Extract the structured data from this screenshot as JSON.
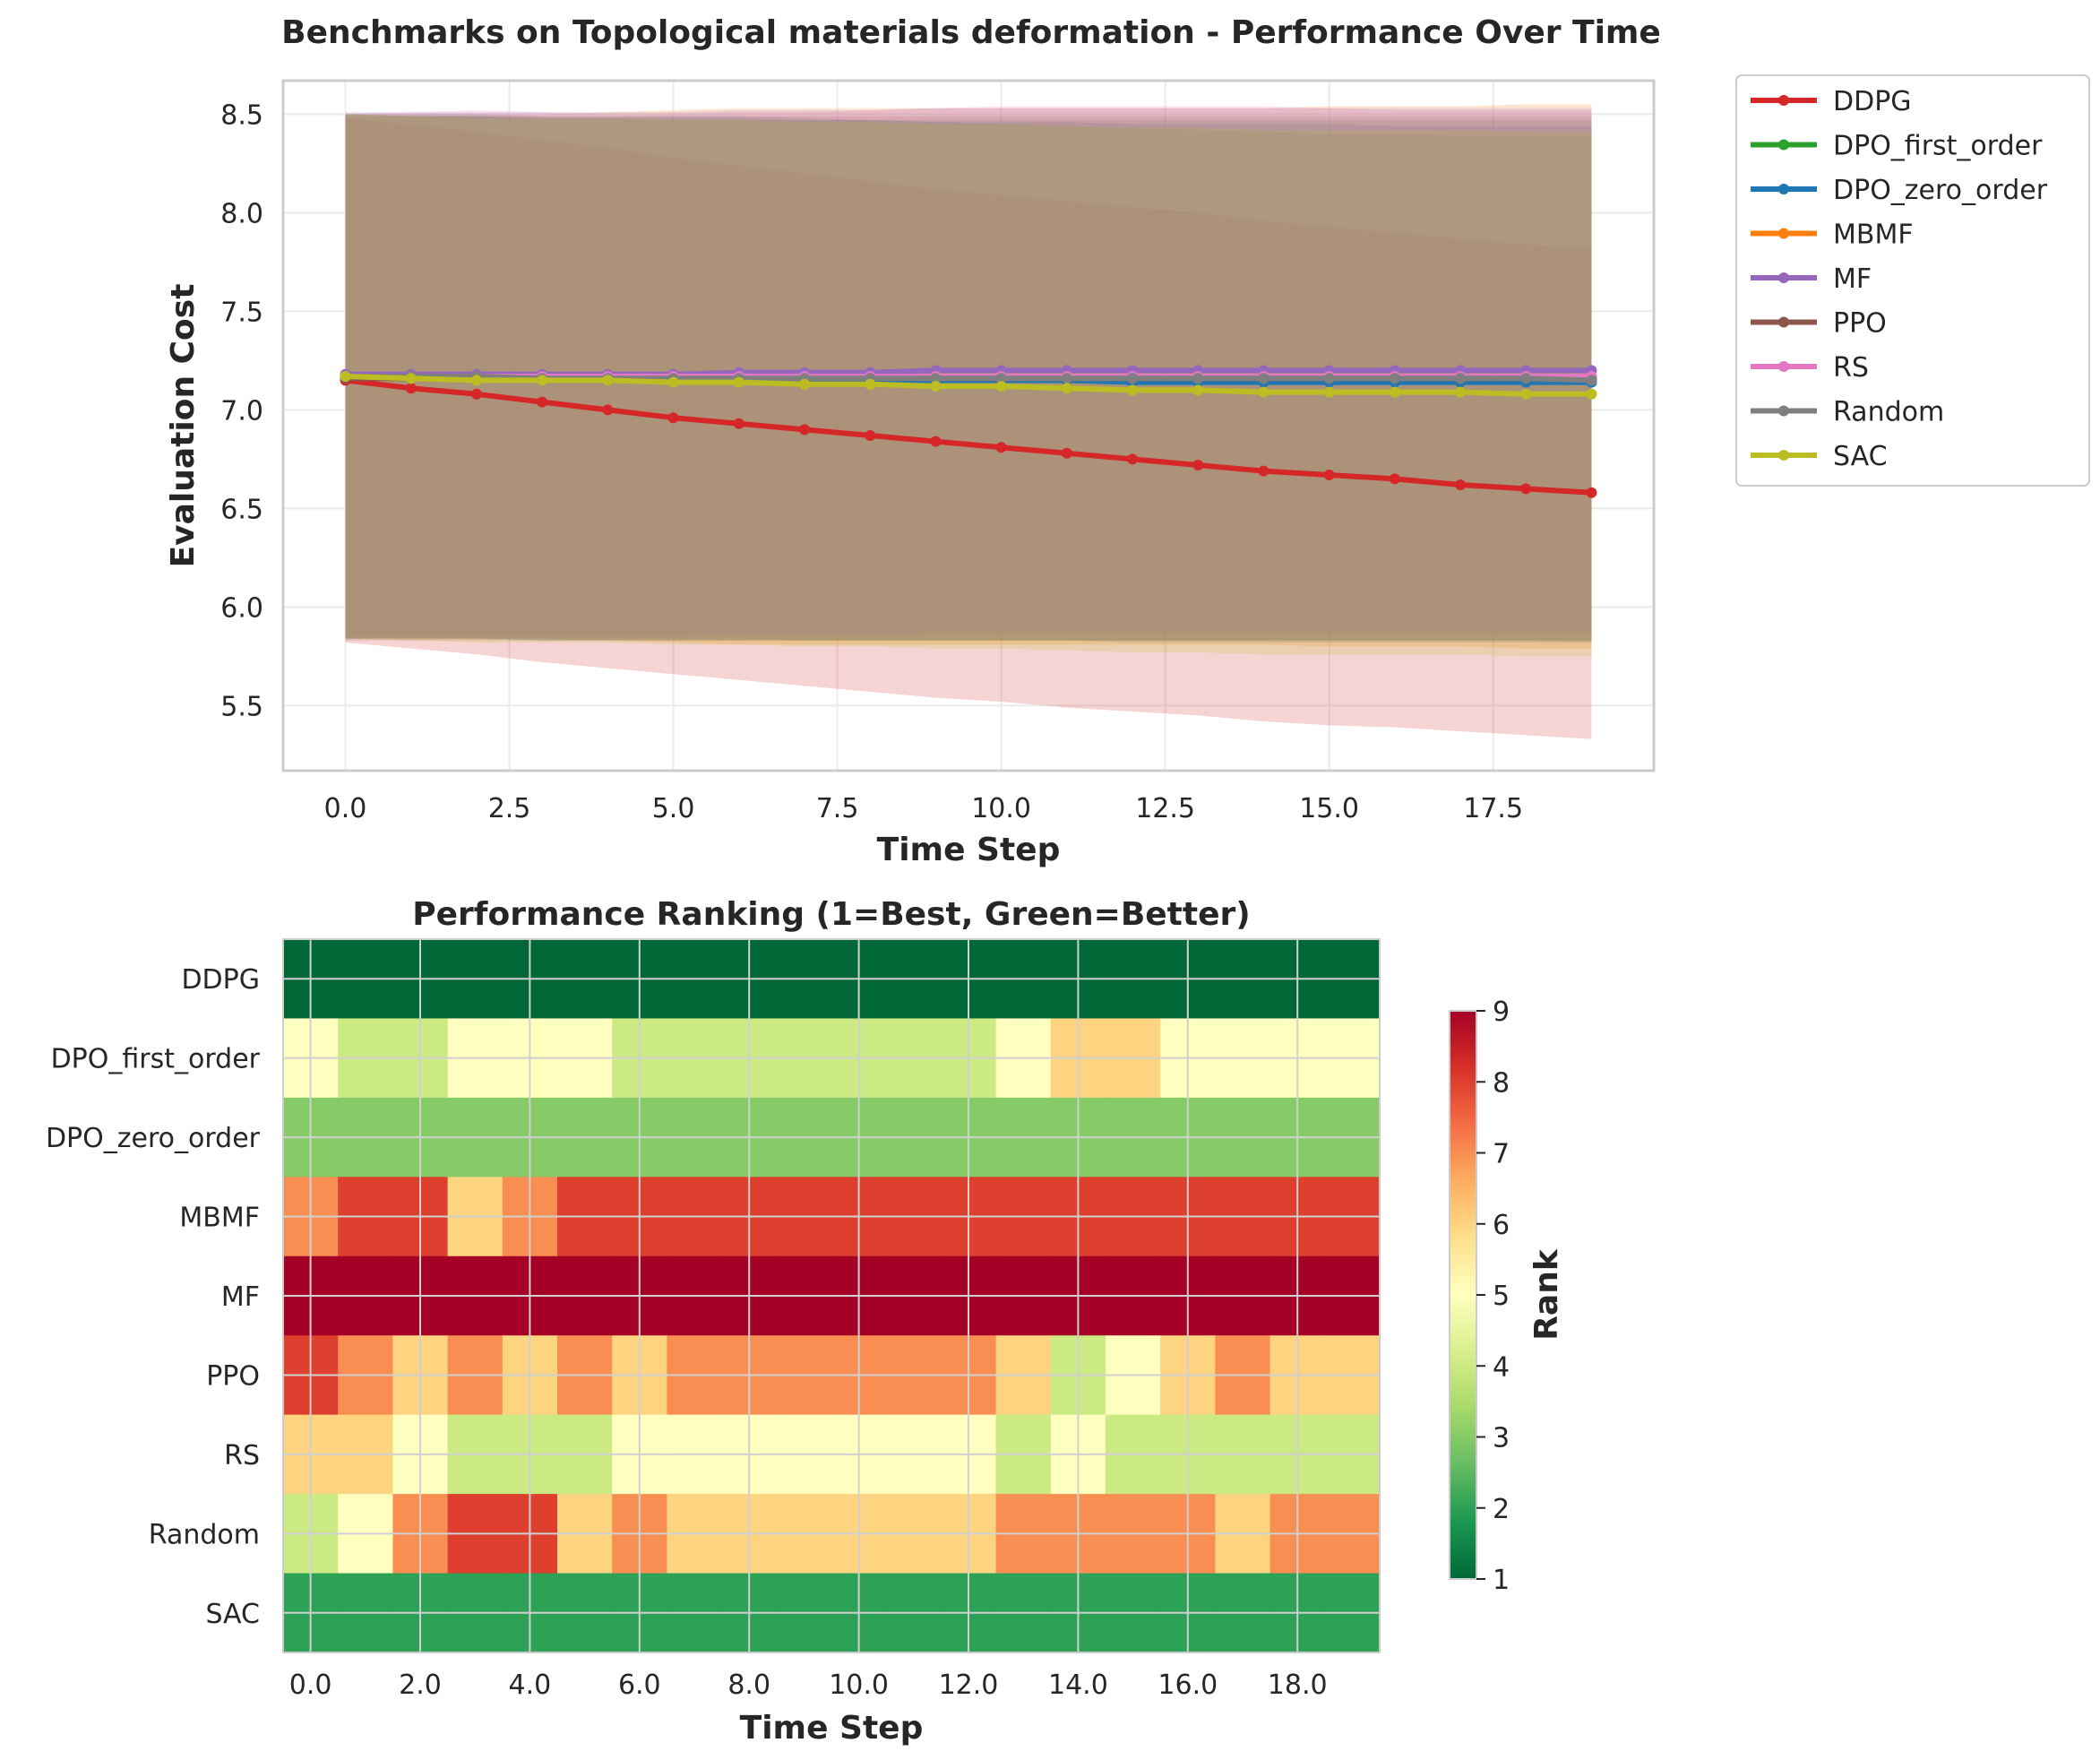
{
  "colors": {
    "DDPG": "#d62728",
    "DPO_first_order": "#2ca02c",
    "DPO_zero_order": "#1f77b4",
    "MBMF": "#ff7f0e",
    "MF": "#9467bd",
    "PPO": "#8c564b",
    "RS": "#e377c2",
    "Random": "#7f7f7f",
    "SAC": "#bcbd22"
  },
  "chart_data": [
    {
      "type": "line",
      "title": "Benchmarks on Topological materials deformation - Performance Over Time",
      "xlabel": "Time Step",
      "ylabel": "Evaluation Cost",
      "xlim": [
        -0.95,
        19.95
      ],
      "ylim": [
        5.17,
        8.67
      ],
      "xticks": [
        0.0,
        2.5,
        5.0,
        7.5,
        10.0,
        12.5,
        15.0,
        17.5
      ],
      "xtick_labels": [
        "0.0",
        "2.5",
        "5.0",
        "7.5",
        "10.0",
        "12.5",
        "15.0",
        "17.5"
      ],
      "yticks": [
        5.5,
        6.0,
        6.5,
        7.0,
        7.5,
        8.0,
        8.5
      ],
      "ytick_labels": [
        "5.5",
        "6.0",
        "6.5",
        "7.0",
        "7.5",
        "8.0",
        "8.5"
      ],
      "grid": true,
      "legend": "outside-right",
      "x": [
        0,
        1,
        2,
        3,
        4,
        5,
        6,
        7,
        8,
        9,
        10,
        11,
        12,
        13,
        14,
        15,
        16,
        17,
        18,
        19
      ],
      "series": [
        {
          "name": "DDPG",
          "values": [
            7.15,
            7.11,
            7.08,
            7.04,
            7.0,
            6.96,
            6.93,
            6.9,
            6.87,
            6.84,
            6.81,
            6.78,
            6.75,
            6.72,
            6.69,
            6.67,
            6.65,
            6.62,
            6.6,
            6.58
          ],
          "lower": [
            5.82,
            5.79,
            5.76,
            5.72,
            5.69,
            5.66,
            5.63,
            5.6,
            5.57,
            5.54,
            5.52,
            5.49,
            5.47,
            5.45,
            5.42,
            5.4,
            5.39,
            5.37,
            5.35,
            5.33
          ],
          "upper": [
            8.48,
            8.45,
            8.41,
            8.37,
            8.33,
            8.28,
            8.24,
            8.2,
            8.16,
            8.12,
            8.09,
            8.06,
            8.03,
            8.0,
            7.96,
            7.93,
            7.9,
            7.87,
            7.84,
            7.82
          ]
        },
        {
          "name": "DPO_first_order",
          "values": [
            7.17,
            7.16,
            7.16,
            7.16,
            7.16,
            7.16,
            7.16,
            7.15,
            7.15,
            7.15,
            7.15,
            7.15,
            7.15,
            7.15,
            7.15,
            7.15,
            7.15,
            7.15,
            7.15,
            7.15
          ],
          "lower": [
            5.84,
            5.84,
            5.84,
            5.84,
            5.84,
            5.84,
            5.84,
            5.83,
            5.83,
            5.83,
            5.83,
            5.83,
            5.83,
            5.83,
            5.83,
            5.83,
            5.83,
            5.83,
            5.83,
            5.83
          ],
          "upper": [
            8.5,
            8.49,
            8.49,
            8.48,
            8.48,
            8.48,
            8.48,
            8.47,
            8.47,
            8.47,
            8.47,
            8.47,
            8.47,
            8.47,
            8.47,
            8.47,
            8.47,
            8.47,
            8.47,
            8.47
          ]
        },
        {
          "name": "DPO_zero_order",
          "values": [
            7.17,
            7.16,
            7.16,
            7.15,
            7.15,
            7.15,
            7.15,
            7.15,
            7.15,
            7.15,
            7.15,
            7.15,
            7.14,
            7.14,
            7.14,
            7.14,
            7.14,
            7.14,
            7.14,
            7.14
          ],
          "lower": [
            5.84,
            5.84,
            5.84,
            5.83,
            5.83,
            5.83,
            5.83,
            5.83,
            5.83,
            5.83,
            5.83,
            5.83,
            5.82,
            5.82,
            5.82,
            5.82,
            5.82,
            5.82,
            5.82,
            5.82
          ],
          "upper": [
            8.5,
            8.49,
            8.49,
            8.48,
            8.48,
            8.47,
            8.47,
            8.47,
            8.47,
            8.46,
            8.46,
            8.46,
            8.45,
            8.45,
            8.45,
            8.45,
            8.44,
            8.44,
            8.44,
            8.44
          ]
        },
        {
          "name": "MBMF",
          "values": [
            7.17,
            7.17,
            7.17,
            7.17,
            7.17,
            7.17,
            7.17,
            7.17,
            7.17,
            7.17,
            7.17,
            7.17,
            7.17,
            7.17,
            7.17,
            7.17,
            7.17,
            7.17,
            7.17,
            7.17
          ],
          "lower": [
            5.84,
            5.84,
            5.84,
            5.84,
            5.83,
            5.82,
            5.81,
            5.81,
            5.81,
            5.81,
            5.81,
            5.81,
            5.81,
            5.81,
            5.81,
            5.8,
            5.8,
            5.8,
            5.79,
            5.79
          ],
          "upper": [
            8.5,
            8.5,
            8.5,
            8.5,
            8.51,
            8.52,
            8.53,
            8.53,
            8.53,
            8.53,
            8.53,
            8.53,
            8.53,
            8.53,
            8.53,
            8.54,
            8.54,
            8.54,
            8.55,
            8.55
          ]
        },
        {
          "name": "MF",
          "values": [
            7.18,
            7.18,
            7.18,
            7.18,
            7.18,
            7.18,
            7.19,
            7.19,
            7.19,
            7.2,
            7.2,
            7.2,
            7.2,
            7.2,
            7.2,
            7.2,
            7.2,
            7.2,
            7.2,
            7.2
          ],
          "lower": [
            5.85,
            5.85,
            5.85,
            5.85,
            5.85,
            5.85,
            5.86,
            5.86,
            5.86,
            5.87,
            5.87,
            5.87,
            5.87,
            5.87,
            5.87,
            5.87,
            5.87,
            5.87,
            5.87,
            5.87
          ],
          "upper": [
            8.51,
            8.51,
            8.51,
            8.51,
            8.51,
            8.51,
            8.52,
            8.52,
            8.52,
            8.53,
            8.53,
            8.53,
            8.53,
            8.53,
            8.53,
            8.53,
            8.53,
            8.53,
            8.53,
            8.53
          ]
        },
        {
          "name": "PPO",
          "values": [
            7.16,
            7.16,
            7.16,
            7.16,
            7.16,
            7.16,
            7.16,
            7.16,
            7.16,
            7.16,
            7.16,
            7.16,
            7.16,
            7.16,
            7.16,
            7.16,
            7.16,
            7.16,
            7.16,
            7.16
          ],
          "lower": [
            5.83,
            5.83,
            5.83,
            5.83,
            5.83,
            5.83,
            5.83,
            5.83,
            5.83,
            5.83,
            5.83,
            5.83,
            5.83,
            5.83,
            5.83,
            5.83,
            5.83,
            5.83,
            5.83,
            5.83
          ],
          "upper": [
            8.49,
            8.49,
            8.49,
            8.49,
            8.49,
            8.49,
            8.49,
            8.49,
            8.49,
            8.49,
            8.49,
            8.49,
            8.49,
            8.49,
            8.49,
            8.49,
            8.49,
            8.49,
            8.49,
            8.49
          ]
        },
        {
          "name": "RS",
          "values": [
            7.17,
            7.17,
            7.17,
            7.17,
            7.17,
            7.17,
            7.17,
            7.17,
            7.17,
            7.17,
            7.17,
            7.17,
            7.17,
            7.17,
            7.17,
            7.17,
            7.17,
            7.17,
            7.17,
            7.17
          ],
          "lower": [
            5.84,
            5.84,
            5.84,
            5.84,
            5.84,
            5.84,
            5.84,
            5.84,
            5.84,
            5.84,
            5.84,
            5.84,
            5.84,
            5.84,
            5.84,
            5.84,
            5.84,
            5.84,
            5.84,
            5.84
          ],
          "upper": [
            8.5,
            8.51,
            8.52,
            8.51,
            8.5,
            8.5,
            8.51,
            8.51,
            8.52,
            8.53,
            8.54,
            8.54,
            8.54,
            8.54,
            8.54,
            8.53,
            8.52,
            8.52,
            8.52,
            8.52
          ]
        },
        {
          "name": "Random",
          "values": [
            7.17,
            7.17,
            7.17,
            7.16,
            7.16,
            7.16,
            7.16,
            7.16,
            7.16,
            7.16,
            7.16,
            7.16,
            7.16,
            7.16,
            7.16,
            7.16,
            7.16,
            7.16,
            7.16,
            7.15
          ],
          "lower": [
            5.84,
            5.84,
            5.84,
            5.83,
            5.83,
            5.83,
            5.83,
            5.83,
            5.83,
            5.83,
            5.83,
            5.83,
            5.83,
            5.83,
            5.83,
            5.83,
            5.83,
            5.83,
            5.83,
            5.82
          ],
          "upper": [
            8.5,
            8.5,
            8.5,
            8.49,
            8.49,
            8.49,
            8.49,
            8.48,
            8.47,
            8.46,
            8.45,
            8.44,
            8.43,
            8.42,
            8.41,
            8.4,
            8.4,
            8.39,
            8.39,
            8.39
          ]
        },
        {
          "name": "SAC",
          "values": [
            7.17,
            7.16,
            7.15,
            7.15,
            7.15,
            7.14,
            7.14,
            7.13,
            7.13,
            7.12,
            7.12,
            7.11,
            7.1,
            7.1,
            7.09,
            7.09,
            7.09,
            7.09,
            7.08,
            7.08
          ],
          "lower": [
            5.84,
            5.83,
            5.82,
            5.82,
            5.82,
            5.81,
            5.81,
            5.8,
            5.8,
            5.79,
            5.79,
            5.78,
            5.77,
            5.77,
            5.76,
            5.76,
            5.76,
            5.76,
            5.75,
            5.75
          ],
          "upper": [
            8.5,
            8.49,
            8.48,
            8.48,
            8.48,
            8.47,
            8.47,
            8.46,
            8.46,
            8.45,
            8.45,
            8.44,
            8.43,
            8.43,
            8.42,
            8.42,
            8.42,
            8.42,
            8.41,
            8.41
          ]
        }
      ]
    },
    {
      "type": "heatmap",
      "title": "Performance Ranking (1=Best, Green=Better)",
      "xlabel": "Time Step",
      "xtick_labels": [
        "0.0",
        "2.0",
        "4.0",
        "6.0",
        "8.0",
        "10.0",
        "12.0",
        "14.0",
        "16.0",
        "18.0"
      ],
      "xtick_positions": [
        0,
        2,
        4,
        6,
        8,
        10,
        12,
        14,
        16,
        18
      ],
      "categories": [
        "DDPG",
        "DPO_first_order",
        "DPO_zero_order",
        "MBMF",
        "MF",
        "PPO",
        "RS",
        "Random",
        "SAC"
      ],
      "colorbar_label": "Rank",
      "colorbar_range": [
        1,
        9
      ],
      "colorbar_ticks": [
        1,
        2,
        3,
        4,
        5,
        6,
        7,
        8,
        9
      ],
      "colormap": "RdYlGn_r",
      "matrix": [
        [
          1,
          1,
          1,
          1,
          1,
          1,
          1,
          1,
          1,
          1,
          1,
          1,
          1,
          1,
          1,
          1,
          1,
          1,
          1,
          1
        ],
        [
          5,
          4,
          4,
          5,
          5,
          5,
          4,
          4,
          4,
          4,
          4,
          4,
          4,
          5,
          6,
          6,
          5,
          5,
          5,
          5
        ],
        [
          3,
          3,
          3,
          3,
          3,
          3,
          3,
          3,
          3,
          3,
          3,
          3,
          3,
          3,
          3,
          3,
          3,
          3,
          3,
          3
        ],
        [
          7,
          8,
          8,
          6,
          7,
          8,
          8,
          8,
          8,
          8,
          8,
          8,
          8,
          8,
          8,
          8,
          8,
          8,
          8,
          8
        ],
        [
          9,
          9,
          9,
          9,
          9,
          9,
          9,
          9,
          9,
          9,
          9,
          9,
          9,
          9,
          9,
          9,
          9,
          9,
          9,
          9
        ],
        [
          8,
          7,
          6,
          7,
          6,
          7,
          6,
          7,
          7,
          7,
          7,
          7,
          7,
          6,
          4,
          5,
          6,
          7,
          6,
          6
        ],
        [
          6,
          6,
          5,
          4,
          4,
          4,
          5,
          5,
          5,
          5,
          5,
          5,
          5,
          4,
          5,
          4,
          4,
          4,
          4,
          4
        ],
        [
          4,
          5,
          7,
          8,
          8,
          6,
          7,
          6,
          6,
          6,
          6,
          6,
          6,
          7,
          7,
          7,
          7,
          6,
          7,
          7
        ],
        [
          2,
          2,
          2,
          2,
          2,
          2,
          2,
          2,
          2,
          2,
          2,
          2,
          2,
          2,
          2,
          2,
          2,
          2,
          2,
          2
        ]
      ]
    }
  ]
}
